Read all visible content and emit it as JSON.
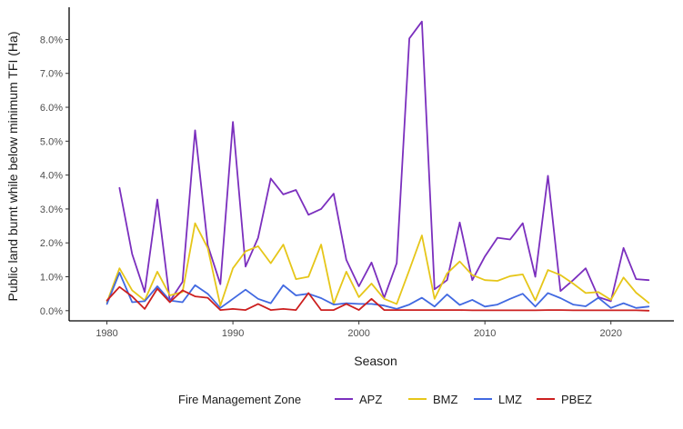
{
  "chart_data": {
    "type": "line",
    "title": "",
    "xlabel": "Season",
    "ylabel": "Public land burnt while below minimum TFI (Ha)",
    "xlim": [
      1977,
      2025
    ],
    "ylim": [
      -0.003,
      0.0895
    ],
    "x_ticks": [
      1980,
      1990,
      2000,
      2010,
      2020
    ],
    "x_tick_labels": [
      "1980",
      "1990",
      "2000",
      "2010",
      "2020"
    ],
    "y_ticks": [
      0,
      0.01,
      0.02,
      0.03,
      0.04,
      0.05,
      0.06,
      0.07,
      0.08
    ],
    "y_tick_labels": [
      "0.0%",
      "1.0%",
      "2.0%",
      "3.0%",
      "4.0%",
      "5.0%",
      "6.0%",
      "7.0%",
      "8.0%"
    ],
    "grid": false,
    "legend": {
      "title": "Fire Management Zone",
      "placement": "bottom"
    },
    "x": [
      1980,
      1981,
      1982,
      1983,
      1984,
      1985,
      1986,
      1987,
      1988,
      1989,
      1990,
      1991,
      1992,
      1993,
      1994,
      1995,
      1996,
      1997,
      1998,
      1999,
      2000,
      2001,
      2002,
      2003,
      2004,
      2005,
      2006,
      2007,
      2008,
      2009,
      2010,
      2011,
      2012,
      2013,
      2014,
      2015,
      2016,
      2017,
      2018,
      2019,
      2020,
      2021,
      2022,
      2023
    ],
    "series": [
      {
        "name": "APZ",
        "color": "#7B2FBE",
        "values": [
          null,
          0.0362,
          0.0167,
          0.0055,
          0.0328,
          0.0028,
          0.0085,
          0.0532,
          0.0193,
          0.0078,
          0.0557,
          0.013,
          0.0215,
          0.039,
          0.0343,
          0.0356,
          0.0283,
          0.03,
          0.0345,
          0.015,
          0.0072,
          0.0142,
          0.0038,
          0.014,
          0.0803,
          0.0853,
          0.0063,
          0.009,
          0.026,
          0.009,
          0.016,
          0.0215,
          0.021,
          0.0258,
          0.01,
          0.0398,
          0.0058,
          0.009,
          0.0125,
          0.004,
          0.0028,
          0.0185,
          0.0093,
          0.009
        ]
      },
      {
        "name": "BMZ",
        "color": "#E6C619",
        "values": [
          0.0025,
          0.0125,
          0.006,
          0.003,
          0.0115,
          0.0045,
          0.0055,
          0.0258,
          0.0185,
          0.0015,
          0.0125,
          0.0175,
          0.019,
          0.014,
          0.0195,
          0.0093,
          0.01,
          0.0195,
          0.002,
          0.0115,
          0.004,
          0.008,
          0.0035,
          0.002,
          0.012,
          0.0222,
          0.0035,
          0.011,
          0.0145,
          0.0105,
          0.009,
          0.0088,
          0.0102,
          0.0107,
          0.003,
          0.012,
          0.0105,
          0.008,
          0.0052,
          0.0055,
          0.0032,
          0.0098,
          0.0053,
          0.0023
        ]
      },
      {
        "name": "LMZ",
        "color": "#4169E1",
        "values": [
          0.002,
          0.0112,
          0.0025,
          0.0028,
          0.0072,
          0.003,
          0.0025,
          0.0075,
          0.005,
          0.0008,
          0.0035,
          0.0062,
          0.0035,
          0.0022,
          0.0075,
          0.0045,
          0.005,
          0.0037,
          0.0018,
          0.0022,
          0.002,
          0.002,
          0.0015,
          0.0005,
          0.0018,
          0.0038,
          0.0012,
          0.0048,
          0.0017,
          0.0032,
          0.0012,
          0.0018,
          0.0035,
          0.005,
          0.0012,
          0.0052,
          0.0037,
          0.0018,
          0.0013,
          0.0038,
          0.0008,
          0.0022,
          0.0008,
          0.0012
        ]
      },
      {
        "name": "PBEZ",
        "color": "#CC1F1F",
        "values": [
          0.003,
          0.007,
          0.0042,
          0.0005,
          0.0065,
          0.0025,
          0.006,
          0.0042,
          0.0038,
          0.0002,
          0.0005,
          0.0002,
          0.002,
          0.0002,
          0.0005,
          0.0002,
          0.0052,
          0.0002,
          0.0002,
          0.002,
          0.0002,
          0.0035,
          0.0002,
          0.0002,
          0.0002,
          0.0002,
          0.0002,
          0.0002,
          0.0002,
          0.0001,
          0.0001,
          0.0001,
          0.0001,
          0.0001,
          0.0001,
          0.0002,
          0.0002,
          0.0001,
          0.0001,
          0.0001,
          0.0001,
          0.0001,
          0.0001,
          0.0
        ]
      }
    ]
  }
}
